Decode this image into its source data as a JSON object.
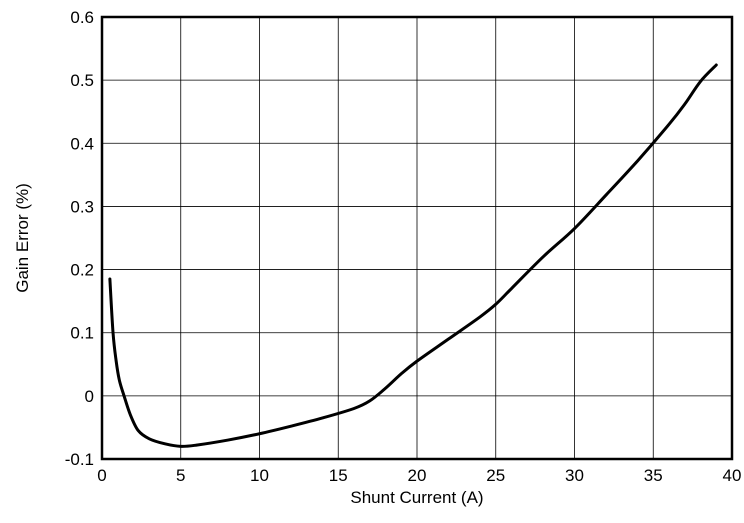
{
  "chart_data": {
    "type": "line",
    "title": "",
    "xlabel": "Shunt Current (A)",
    "ylabel": "Gain Error (%)",
    "xlim": [
      0,
      40
    ],
    "ylim": [
      -0.1,
      0.6
    ],
    "grid": true,
    "x_ticks": [
      "0",
      "5",
      "10",
      "15",
      "20",
      "25",
      "30",
      "35",
      "40"
    ],
    "y_ticks": [
      "-0.1",
      "0",
      "0.1",
      "0.2",
      "0.3",
      "0.4",
      "0.5",
      "0.6"
    ],
    "series": [
      {
        "color": "#000000",
        "x": [
          0.5,
          0.7,
          0.9,
          1.1,
          1.4,
          1.8,
          2.3,
          3,
          4,
          5,
          6,
          8,
          10,
          12,
          14,
          16,
          17,
          18,
          19,
          20,
          22,
          24,
          25,
          26,
          28,
          30,
          32,
          34,
          36,
          37,
          38,
          39
        ],
        "y": [
          0.185,
          0.1,
          0.055,
          0.025,
          0.0,
          -0.03,
          -0.055,
          -0.068,
          -0.076,
          -0.08,
          -0.078,
          -0.07,
          -0.06,
          -0.048,
          -0.035,
          -0.02,
          -0.008,
          0.012,
          0.035,
          0.055,
          0.09,
          0.125,
          0.145,
          0.17,
          0.22,
          0.265,
          0.318,
          0.372,
          0.43,
          0.462,
          0.498,
          0.524
        ]
      }
    ]
  }
}
